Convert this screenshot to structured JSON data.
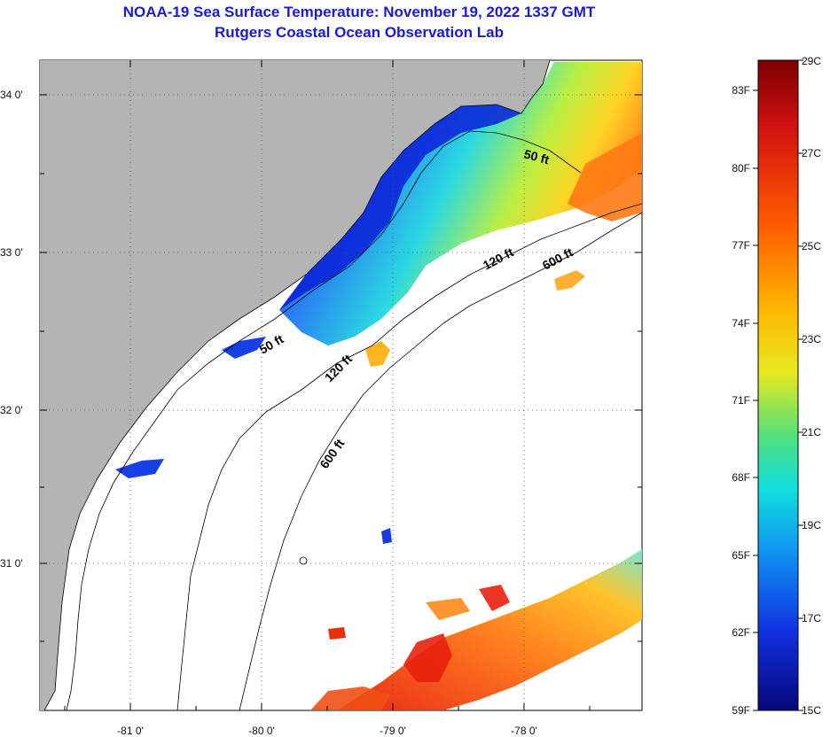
{
  "header": {
    "title": "NOAA-19 Sea Surface Temperature:  November 19, 2022 1337 GMT",
    "subtitle": "Rutgers Coastal Ocean Observation Lab"
  },
  "map": {
    "lat_labels": [
      "34 0'",
      "33 0'",
      "32 0'",
      "31 0'"
    ],
    "lon_labels": [
      "-81 0'",
      "-80 0'",
      "-79 0'",
      "-78 0'"
    ],
    "contours": [
      "50 ft",
      "120 ft",
      "600 ft",
      "50 ft",
      "120 ft",
      "600 ft"
    ]
  },
  "colorbar": {
    "fahrenheit": [
      "83F",
      "80F",
      "77F",
      "74F",
      "71F",
      "68F",
      "65F",
      "62F",
      "59F"
    ],
    "celsius": [
      "29C",
      "27C",
      "25C",
      "23C",
      "21C",
      "19C",
      "17C",
      "15C"
    ]
  },
  "colors": {
    "land": "#b4b4b4",
    "water_cold": "#0a1fd8",
    "water_warm": "#f03a10",
    "title_blue": "#1a1ad6"
  }
}
